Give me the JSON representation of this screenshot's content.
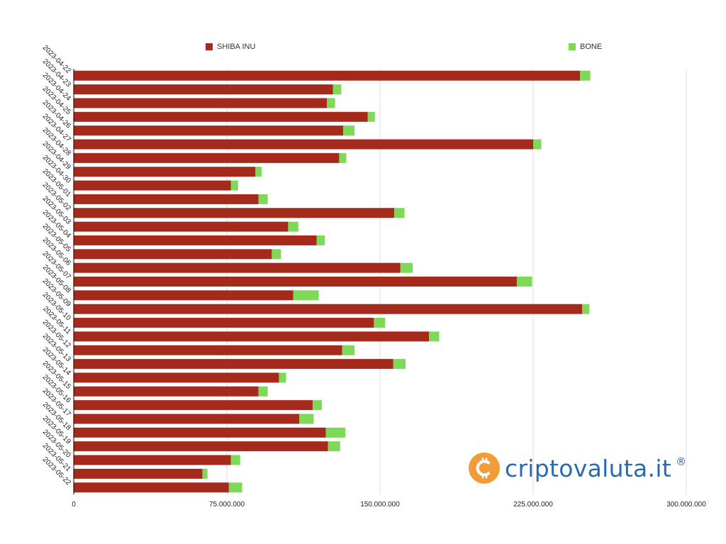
{
  "colors": {
    "shiba": "#a52a1c",
    "bone": "#7ed957",
    "grid": "#dddddd",
    "axis": "#000000",
    "logo_orange": "#f39a3b",
    "logo_blue": "#2a6bb0"
  },
  "legend": {
    "shiba": "SHIBA INU",
    "bone": "BONE"
  },
  "logo": {
    "text": "criptovaluta.it",
    "reg": "®",
    "icon": "bitcoin-coin-icon"
  },
  "chart_data": {
    "type": "bar",
    "orientation": "horizontal",
    "stacked": true,
    "categories": [
      "2023-04-22",
      "2023-04-23",
      "2023-04-24",
      "2023-04-25",
      "2023-04-26",
      "2023-04-27",
      "2023-04-28",
      "2023-04-29",
      "2023-04-30",
      "2023-05-01",
      "2023-05-02",
      "2023-05-03",
      "2023-05-04",
      "2023-05-05",
      "2023-05-06",
      "2023-05-07",
      "2023-05-08",
      "2023-05-09",
      "2023-05-10",
      "2023-05-11",
      "2023-05-12",
      "2023-05-13",
      "2023-05-14",
      "2023-05-15",
      "2023-05-16",
      "2023-05-17",
      "2023-05-18",
      "2023-05-19",
      "2023-05-20",
      "2023-05-21",
      "2023-05-22"
    ],
    "series": [
      {
        "name": "SHIBA INU",
        "values": [
          248000000,
          127000000,
          124000000,
          144000000,
          132000000,
          225000000,
          130000000,
          89000000,
          77000000,
          90500000,
          157000000,
          105000000,
          119000000,
          97000000,
          160000000,
          217000000,
          107500000,
          249000000,
          147000000,
          174000000,
          131500000,
          156500000,
          100500000,
          90500000,
          117000000,
          110500000,
          123500000,
          124500000,
          77000000,
          63000000,
          76000000
        ]
      },
      {
        "name": "BONE",
        "values": [
          5000000,
          4000000,
          4000000,
          3500000,
          5500000,
          4000000,
          3500000,
          3000000,
          3500000,
          4500000,
          5000000,
          5000000,
          4000000,
          4500000,
          6000000,
          7500000,
          12500000,
          3500000,
          5500000,
          5000000,
          6000000,
          6000000,
          3500000,
          4500000,
          4500000,
          7000000,
          9500000,
          6000000,
          4500000,
          2500000,
          6500000
        ]
      }
    ],
    "x_ticks": [
      "0",
      "75.000.000",
      "150.000.000",
      "225.000.000",
      "300.000.000"
    ],
    "xlim": [
      0,
      300000000
    ],
    "grid": true,
    "legend_position": "top"
  }
}
